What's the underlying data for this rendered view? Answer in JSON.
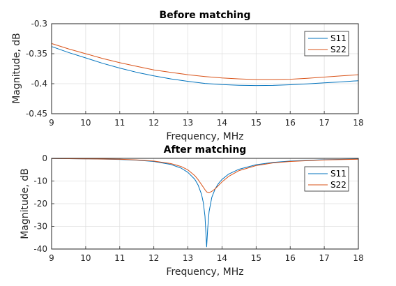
{
  "chart_data": [
    {
      "type": "line",
      "title": "Before matching",
      "xlabel": "Frequency, MHz",
      "ylabel": "Magnitude, dB",
      "xlim": [
        9,
        18
      ],
      "ylim": [
        -0.45,
        -0.3
      ],
      "xticks": [
        "9",
        "10",
        "11",
        "12",
        "13",
        "14",
        "15",
        "16",
        "17",
        "18"
      ],
      "yticks": [
        "-0.3",
        "-0.35",
        "-0.4",
        "-0.45"
      ],
      "ytick_values": [
        -0.3,
        -0.35,
        -0.4,
        -0.45
      ],
      "grid": true,
      "legend_position": "top-right",
      "series": [
        {
          "name": "S11",
          "color": "#0072bd",
          "x": [
            9,
            9.5,
            10,
            10.5,
            11,
            11.5,
            12,
            12.5,
            13,
            13.5,
            14,
            14.5,
            15,
            15.5,
            16,
            16.5,
            17,
            17.5,
            18
          ],
          "y": [
            -0.338,
            -0.348,
            -0.357,
            -0.366,
            -0.374,
            -0.381,
            -0.387,
            -0.392,
            -0.396,
            -0.3995,
            -0.4015,
            -0.4025,
            -0.403,
            -0.4028,
            -0.4018,
            -0.4003,
            -0.3985,
            -0.397,
            -0.395
          ]
        },
        {
          "name": "S22",
          "color": "#d95319",
          "x": [
            9,
            9.5,
            10,
            10.5,
            11,
            11.5,
            12,
            12.5,
            13,
            13.5,
            14,
            14.5,
            15,
            15.5,
            16,
            16.5,
            17,
            17.5,
            18
          ],
          "y": [
            -0.333,
            -0.342,
            -0.35,
            -0.358,
            -0.365,
            -0.371,
            -0.377,
            -0.381,
            -0.385,
            -0.388,
            -0.3905,
            -0.392,
            -0.393,
            -0.393,
            -0.3925,
            -0.391,
            -0.389,
            -0.387,
            -0.385
          ]
        }
      ]
    },
    {
      "type": "line",
      "title": "After matching",
      "xlabel": "Frequency, MHz",
      "ylabel": "Magnitude, dB",
      "xlim": [
        9,
        18
      ],
      "ylim": [
        -40,
        0
      ],
      "xticks": [
        "9",
        "10",
        "11",
        "12",
        "13",
        "14",
        "15",
        "16",
        "17",
        "18"
      ],
      "yticks": [
        "0",
        "-10",
        "-20",
        "-30",
        "-40"
      ],
      "ytick_values": [
        0,
        -10,
        -20,
        -30,
        -40
      ],
      "grid": true,
      "legend_position": "top-right",
      "series": [
        {
          "name": "S11",
          "color": "#0072bd",
          "x": [
            9,
            10,
            11,
            11.5,
            12,
            12.5,
            12.8,
            13,
            13.2,
            13.3,
            13.4,
            13.45,
            13.5,
            13.55,
            13.58,
            13.62,
            13.7,
            13.8,
            13.9,
            14,
            14.2,
            14.5,
            15,
            15.5,
            16,
            17,
            18
          ],
          "y": [
            -0.1,
            -0.2,
            -0.5,
            -0.8,
            -1.4,
            -2.7,
            -4.3,
            -6.2,
            -9.2,
            -11.8,
            -15.9,
            -19.5,
            -25.5,
            -39.0,
            -31.0,
            -23.5,
            -17.2,
            -13.4,
            -11.0,
            -9.3,
            -6.9,
            -4.8,
            -2.8,
            -1.8,
            -1.2,
            -0.6,
            -0.3
          ]
        },
        {
          "name": "S22",
          "color": "#d95319",
          "x": [
            9,
            10,
            11,
            11.5,
            12,
            12.5,
            12.8,
            13,
            13.2,
            13.3,
            13.4,
            13.5,
            13.55,
            13.62,
            13.7,
            13.8,
            13.9,
            14,
            14.2,
            14.5,
            15,
            15.5,
            16,
            17,
            18
          ],
          "y": [
            -0.1,
            -0.2,
            -0.4,
            -0.7,
            -1.2,
            -2.3,
            -3.6,
            -5.1,
            -7.6,
            -9.4,
            -11.6,
            -13.8,
            -14.8,
            -15.1,
            -14.6,
            -13.4,
            -11.9,
            -10.4,
            -7.9,
            -5.4,
            -3.2,
            -2.0,
            -1.4,
            -0.7,
            -0.4
          ]
        }
      ]
    }
  ]
}
